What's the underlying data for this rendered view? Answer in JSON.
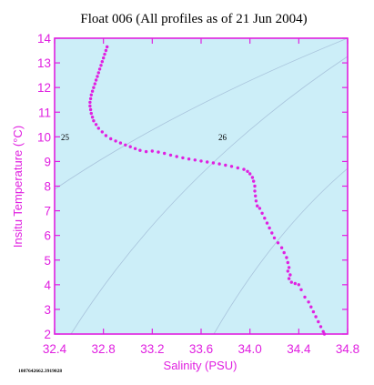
{
  "chart_data": {
    "type": "scatter",
    "title": "Float 006  (All profiles as of 21 Jun 2004)",
    "xlabel": "Salinity (PSU)",
    "ylabel": "Insitu Temperature (°C)",
    "xlim": [
      32.4,
      34.8
    ],
    "ylim": [
      2,
      14
    ],
    "xticks": [
      "32.4",
      "32.8",
      "33.2",
      "33.6",
      "34.0",
      "34.4",
      "34.8"
    ],
    "yticks": [
      "2",
      "3",
      "4",
      "5",
      "6",
      "7",
      "8",
      "9",
      "10",
      "11",
      "12",
      "13",
      "14"
    ],
    "grid": false,
    "background_color": "#cceef8",
    "axis_color": "#e020e0",
    "point_color": "#e020e0",
    "isopycnal_labels": [
      "25",
      "26"
    ],
    "footer_text": "1087642662.3919028",
    "series": [
      {
        "points": [
          [
            32.83,
            13.65
          ],
          [
            32.82,
            13.5
          ],
          [
            32.81,
            13.35
          ],
          [
            32.8,
            13.2
          ],
          [
            32.79,
            13.05
          ],
          [
            32.78,
            12.9
          ],
          [
            32.77,
            12.75
          ],
          [
            32.76,
            12.6
          ],
          [
            32.75,
            12.45
          ],
          [
            32.74,
            12.3
          ],
          [
            32.73,
            12.15
          ],
          [
            32.72,
            12.0
          ],
          [
            32.71,
            11.85
          ],
          [
            32.7,
            11.7
          ],
          [
            32.695,
            11.55
          ],
          [
            32.69,
            11.4
          ],
          [
            32.69,
            11.25
          ],
          [
            32.695,
            11.1
          ],
          [
            32.7,
            10.95
          ],
          [
            32.71,
            10.8
          ],
          [
            32.72,
            10.65
          ],
          [
            32.74,
            10.5
          ],
          [
            32.76,
            10.35
          ],
          [
            32.79,
            10.2
          ],
          [
            32.82,
            10.05
          ],
          [
            32.86,
            9.92
          ],
          [
            32.9,
            9.83
          ],
          [
            32.94,
            9.75
          ],
          [
            32.98,
            9.67
          ],
          [
            33.02,
            9.6
          ],
          [
            33.06,
            9.52
          ],
          [
            33.1,
            9.45
          ],
          [
            33.15,
            9.4
          ],
          [
            33.2,
            9.42
          ],
          [
            33.25,
            9.38
          ],
          [
            33.3,
            9.33
          ],
          [
            33.35,
            9.26
          ],
          [
            33.4,
            9.2
          ],
          [
            33.45,
            9.15
          ],
          [
            33.5,
            9.1
          ],
          [
            33.55,
            9.06
          ],
          [
            33.6,
            9.02
          ],
          [
            33.65,
            8.98
          ],
          [
            33.7,
            8.94
          ],
          [
            33.75,
            8.9
          ],
          [
            33.8,
            8.85
          ],
          [
            33.85,
            8.8
          ],
          [
            33.9,
            8.74
          ],
          [
            33.95,
            8.68
          ],
          [
            33.98,
            8.6
          ],
          [
            34.0,
            8.5
          ],
          [
            34.02,
            8.35
          ],
          [
            34.03,
            8.2
          ],
          [
            34.04,
            8.0
          ],
          [
            34.04,
            7.8
          ],
          [
            34.045,
            7.6
          ],
          [
            34.05,
            7.4
          ],
          [
            34.06,
            7.2
          ],
          [
            34.08,
            7.1
          ],
          [
            34.1,
            6.9
          ],
          [
            34.12,
            6.7
          ],
          [
            34.14,
            6.5
          ],
          [
            34.16,
            6.3
          ],
          [
            34.18,
            6.1
          ],
          [
            34.2,
            5.9
          ],
          [
            34.23,
            5.7
          ],
          [
            34.26,
            5.5
          ],
          [
            34.28,
            5.3
          ],
          [
            34.3,
            5.1
          ],
          [
            34.31,
            4.9
          ],
          [
            34.32,
            4.7
          ],
          [
            34.31,
            4.55
          ],
          [
            34.33,
            4.4
          ],
          [
            34.32,
            4.25
          ],
          [
            34.34,
            4.1
          ],
          [
            34.37,
            4.05
          ],
          [
            34.4,
            4.0
          ],
          [
            34.42,
            3.8
          ],
          [
            34.45,
            3.5
          ],
          [
            34.48,
            3.3
          ],
          [
            34.5,
            3.1
          ],
          [
            34.52,
            2.9
          ],
          [
            34.54,
            2.7
          ],
          [
            34.56,
            2.5
          ],
          [
            34.58,
            2.3
          ],
          [
            34.6,
            2.1
          ],
          [
            34.61,
            2.0
          ]
        ]
      }
    ]
  }
}
